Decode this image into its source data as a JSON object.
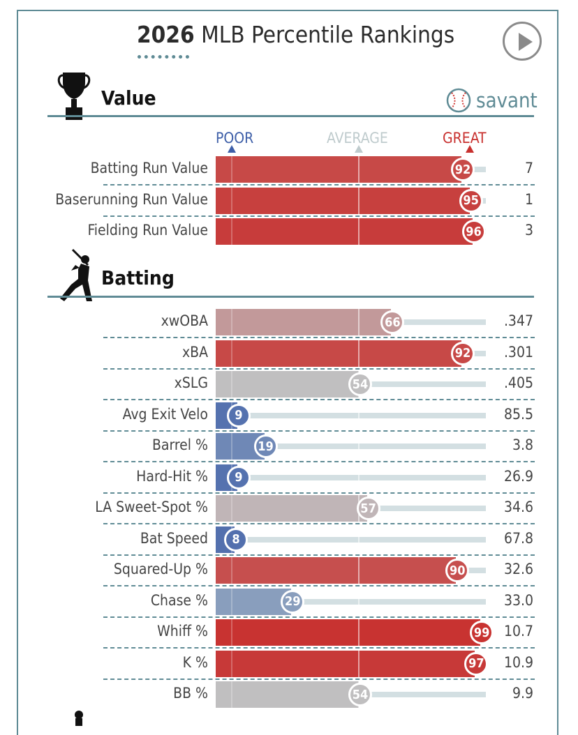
{
  "header": {
    "title_year": "2026",
    "title_text": "MLB Percentile Rankings",
    "play_label": "play-button"
  },
  "value_section": {
    "title": "Value",
    "brand": "savant",
    "scale": {
      "poor": "POOR",
      "average": "AVERAGE",
      "great": "GREAT"
    }
  },
  "batting_section": {
    "title": "Batting"
  },
  "colors": {
    "poor": "#3e5fa8",
    "average": "#bfcbcd",
    "great": "#c8302e",
    "accent": "#5f8b95"
  },
  "chart_data": {
    "type": "bar",
    "title": "2026 MLB Percentile Rankings",
    "xlim": [
      0,
      100
    ],
    "scale_labels": [
      "POOR",
      "AVERAGE",
      "GREAT"
    ],
    "series": [
      {
        "name": "Value",
        "categories": [
          "Batting Run Value",
          "Baserunning Run Value",
          "Fielding Run Value"
        ],
        "percentiles": [
          92,
          95,
          96
        ],
        "values": [
          "7",
          "1",
          "3"
        ]
      },
      {
        "name": "Batting",
        "categories": [
          "xwOBA",
          "xBA",
          "xSLG",
          "Avg Exit Velo",
          "Barrel %",
          "Hard-Hit %",
          "LA Sweet-Spot %",
          "Bat Speed",
          "Squared-Up %",
          "Chase %",
          "Whiff %",
          "K %",
          "BB %"
        ],
        "percentiles": [
          66,
          92,
          54,
          9,
          19,
          9,
          57,
          8,
          90,
          29,
          99,
          97,
          54
        ],
        "values": [
          ".347",
          ".301",
          ".405",
          "85.5",
          "3.8",
          "26.9",
          "34.6",
          "67.8",
          "32.6",
          "33.0",
          "10.7",
          "10.9",
          "9.9"
        ]
      }
    ]
  }
}
